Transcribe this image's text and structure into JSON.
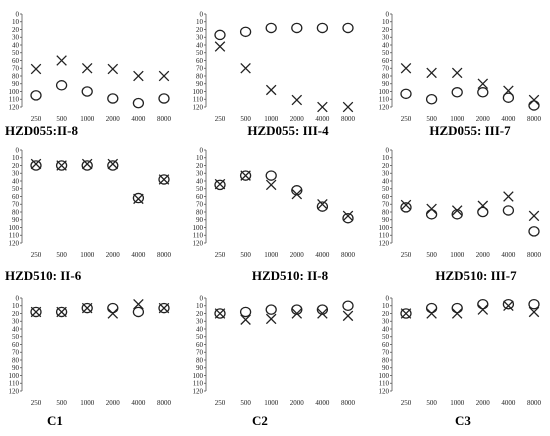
{
  "chart_data": [
    {
      "type": "scatter",
      "title": "HZD055:II-8",
      "x": [
        250,
        500,
        1000,
        2000,
        4000,
        8000
      ],
      "ylim": [
        0,
        120
      ],
      "y_inverted": true,
      "series": [
        {
          "marker": "circle",
          "values": [
            105,
            92,
            100,
            109,
            115,
            109
          ]
        },
        {
          "marker": "cross",
          "values": [
            71,
            60,
            70,
            71,
            80,
            80
          ]
        }
      ]
    },
    {
      "type": "scatter",
      "title": "HZD055: III-4",
      "x": [
        250,
        500,
        1000,
        2000,
        4000,
        8000
      ],
      "ylim": [
        0,
        120
      ],
      "y_inverted": true,
      "series": [
        {
          "marker": "circle",
          "values": [
            27,
            23,
            18,
            18,
            18,
            18
          ]
        },
        {
          "marker": "cross",
          "values": [
            42,
            70,
            98,
            111,
            120,
            120
          ]
        }
      ]
    },
    {
      "type": "scatter",
      "title": "HZD055: III-7",
      "x": [
        250,
        500,
        1000,
        2000,
        4000,
        8000
      ],
      "ylim": [
        0,
        120
      ],
      "y_inverted": true,
      "series": [
        {
          "marker": "circle",
          "values": [
            103,
            110,
            101,
            101,
            108,
            118
          ]
        },
        {
          "marker": "cross",
          "values": [
            70,
            76,
            76,
            90,
            99,
            111
          ]
        }
      ]
    },
    {
      "type": "scatter",
      "title": "HZD510: II-6",
      "x": [
        250,
        500,
        1000,
        2000,
        4000,
        8000
      ],
      "ylim": [
        0,
        120
      ],
      "y_inverted": true,
      "series": [
        {
          "marker": "circle",
          "values": [
            20,
            20,
            20,
            20,
            62,
            38
          ]
        },
        {
          "marker": "cross",
          "values": [
            18,
            20,
            18,
            18,
            63,
            38
          ]
        }
      ]
    },
    {
      "type": "scatter",
      "title": "HZD510: II-8",
      "x": [
        250,
        500,
        1000,
        2000,
        4000,
        8000
      ],
      "ylim": [
        0,
        120
      ],
      "y_inverted": true,
      "series": [
        {
          "marker": "circle",
          "values": [
            45,
            33,
            33,
            52,
            73,
            88
          ]
        },
        {
          "marker": "cross",
          "values": [
            44,
            33,
            45,
            57,
            70,
            85
          ]
        }
      ]
    },
    {
      "type": "scatter",
      "title": "HZD510: III-7",
      "x": [
        250,
        500,
        1000,
        2000,
        4000,
        8000
      ],
      "ylim": [
        0,
        120
      ],
      "y_inverted": true,
      "series": [
        {
          "marker": "circle",
          "values": [
            74,
            83,
            83,
            80,
            78,
            105
          ]
        },
        {
          "marker": "cross",
          "values": [
            71,
            76,
            78,
            72,
            60,
            85
          ]
        }
      ]
    },
    {
      "type": "scatter",
      "title": "C1",
      "x": [
        250,
        500,
        1000,
        2000,
        4000,
        8000
      ],
      "ylim": [
        0,
        120
      ],
      "y_inverted": true,
      "series": [
        {
          "marker": "circle",
          "values": [
            18,
            18,
            13,
            13,
            18,
            13
          ]
        },
        {
          "marker": "cross",
          "values": [
            18,
            18,
            13,
            20,
            8,
            13
          ]
        }
      ]
    },
    {
      "type": "scatter",
      "title": "C2",
      "x": [
        250,
        500,
        1000,
        2000,
        4000,
        8000
      ],
      "ylim": [
        0,
        120
      ],
      "y_inverted": true,
      "series": [
        {
          "marker": "circle",
          "values": [
            20,
            18,
            15,
            15,
            15,
            10
          ]
        },
        {
          "marker": "cross",
          "values": [
            20,
            28,
            27,
            20,
            20,
            23
          ]
        }
      ]
    },
    {
      "type": "scatter",
      "title": "C3",
      "x": [
        250,
        500,
        1000,
        2000,
        4000,
        8000
      ],
      "ylim": [
        0,
        120
      ],
      "y_inverted": true,
      "series": [
        {
          "marker": "circle",
          "values": [
            20,
            13,
            13,
            8,
            8,
            8
          ]
        },
        {
          "marker": "cross",
          "values": [
            20,
            20,
            20,
            15,
            10,
            18
          ]
        }
      ]
    }
  ],
  "yticks": [
    0,
    10,
    20,
    30,
    40,
    50,
    60,
    70,
    80,
    90,
    100,
    110,
    120
  ],
  "xtick_labels": [
    "250",
    "500",
    "1000",
    "2000",
    "4000",
    "8000"
  ]
}
